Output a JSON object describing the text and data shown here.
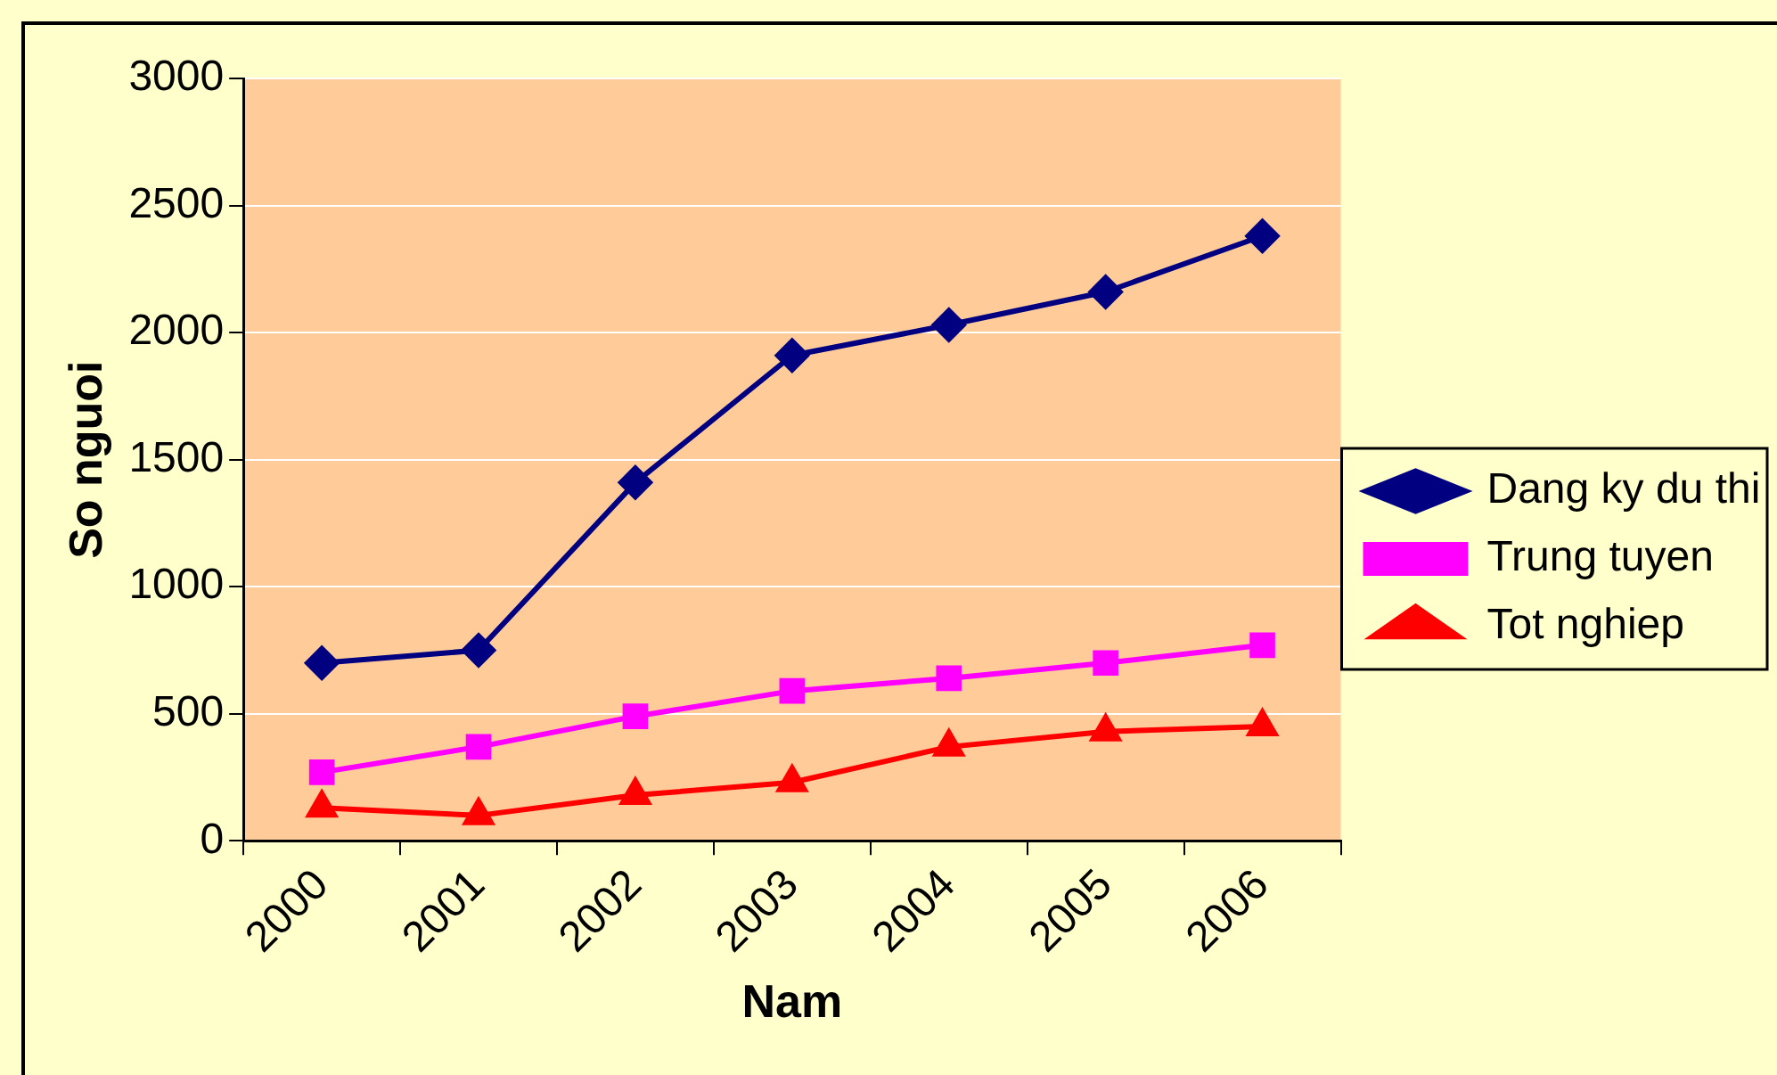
{
  "chart_data": {
    "type": "line",
    "xlabel": "Nam",
    "ylabel": "So nguoi",
    "categories": [
      "2000",
      "2001",
      "2002",
      "2003",
      "2004",
      "2005",
      "2006"
    ],
    "series": [
      {
        "name": "Dang ky du thi",
        "color": "#000080",
        "marker": "diamond",
        "values": [
          700,
          750,
          1410,
          1910,
          2030,
          2160,
          2380
        ]
      },
      {
        "name": "Trung tuyen",
        "color": "#ff00ff",
        "marker": "square",
        "values": [
          270,
          370,
          490,
          590,
          640,
          700,
          770
        ]
      },
      {
        "name": "Tot nghiep",
        "color": "#ff0000",
        "marker": "triangle",
        "values": [
          130,
          100,
          180,
          230,
          370,
          430,
          450
        ]
      }
    ],
    "ylim": [
      0,
      3000
    ],
    "yticks": [
      0,
      500,
      1000,
      1500,
      2000,
      2500,
      3000
    ],
    "grid": "y",
    "legend": "right",
    "line_style": "solid"
  }
}
